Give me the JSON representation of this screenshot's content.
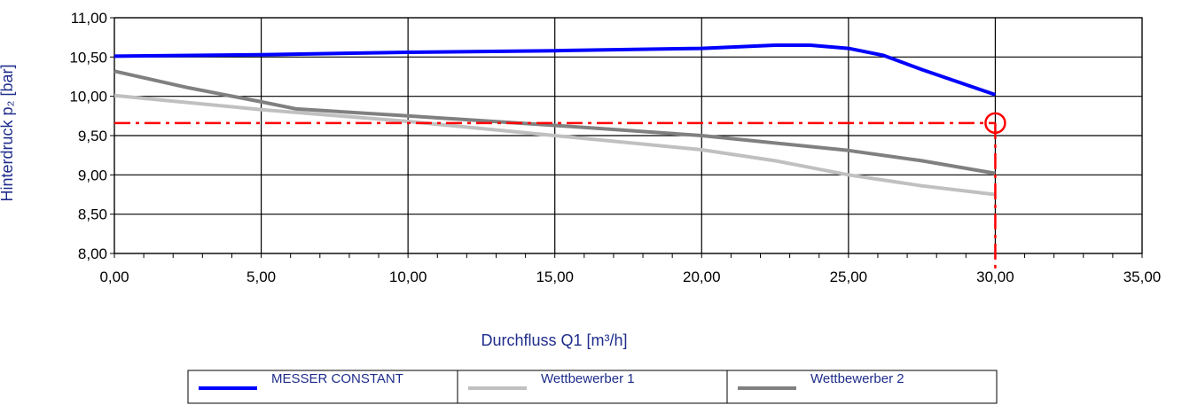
{
  "chart_data": {
    "type": "line",
    "xlabel": "Durchfluss Q1 [m³/h]",
    "ylabel": "Hinterdruck p₂ [bar]",
    "xlim": [
      0,
      35
    ],
    "ylim": [
      8,
      11
    ],
    "x_ticks": [
      "0,00",
      "5,00",
      "10,00",
      "15,00",
      "20,00",
      "25,00",
      "30,00",
      "35,00"
    ],
    "y_ticks": [
      "8,00",
      "8,50",
      "9,00",
      "9,50",
      "10,00",
      "10,50",
      "11,00"
    ],
    "grid": true,
    "legend_position": "bottom",
    "series": [
      {
        "name": "MESSER CONSTANT",
        "color": "#0000ff",
        "points": [
          [
            0,
            10.51
          ],
          [
            5,
            10.53
          ],
          [
            10,
            10.56
          ],
          [
            15,
            10.58
          ],
          [
            20,
            10.61
          ],
          [
            22.5,
            10.65
          ],
          [
            23.7,
            10.65
          ],
          [
            25,
            10.61
          ],
          [
            26.2,
            10.52
          ],
          [
            27.5,
            10.34
          ],
          [
            30,
            10.02
          ]
        ]
      },
      {
        "name": "Wettbewerber 1",
        "color": "#c0c0c0",
        "points": [
          [
            0,
            10.01
          ],
          [
            5,
            9.83
          ],
          [
            10,
            9.68
          ],
          [
            15,
            9.5
          ],
          [
            20,
            9.32
          ],
          [
            22.5,
            9.18
          ],
          [
            25,
            9.0
          ],
          [
            27.5,
            8.86
          ],
          [
            30,
            8.75
          ]
        ]
      },
      {
        "name": "Wettbewerber 2",
        "color": "#808080",
        "points": [
          [
            0,
            10.32
          ],
          [
            2.5,
            10.11
          ],
          [
            5,
            9.93
          ],
          [
            6.2,
            9.84
          ],
          [
            10,
            9.75
          ],
          [
            15,
            9.63
          ],
          [
            20,
            9.5
          ],
          [
            25,
            9.31
          ],
          [
            27.5,
            9.18
          ],
          [
            30,
            9.02
          ]
        ]
      }
    ],
    "marker": {
      "x": 30,
      "y": 9.66,
      "color": "#ff0000"
    }
  }
}
